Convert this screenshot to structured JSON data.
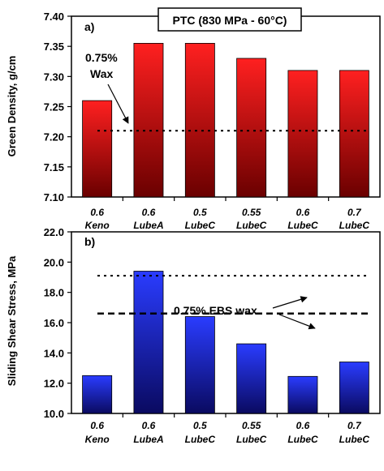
{
  "chart_data": [
    {
      "type": "bar",
      "panel_label": "a)",
      "title": "PTC (830 MPa - 60°C)",
      "ylabel": "Green Density, g/cm",
      "ylim": [
        7.1,
        7.4
      ],
      "yticks": [
        "7.10",
        "7.15",
        "7.20",
        "7.25",
        "7.30",
        "7.35",
        "7.40"
      ],
      "categories": [
        {
          "line1": "0.6",
          "line2": "Keno"
        },
        {
          "line1": "0.6",
          "line2": "LubeA"
        },
        {
          "line1": "0.5",
          "line2": "LubeC"
        },
        {
          "line1": "0.55",
          "line2": "LubeC"
        },
        {
          "line1": "0.6",
          "line2": "LubeC"
        },
        {
          "line1": "0.7",
          "line2": "LubeC"
        }
      ],
      "values": [
        7.26,
        7.355,
        7.355,
        7.33,
        7.31,
        7.31
      ],
      "bar_color_top": "#ff2020",
      "bar_color_bottom": "#6a0000",
      "reference_lines": [
        {
          "value": 7.21,
          "style": "dotted"
        }
      ],
      "annotation": {
        "line1": "0.75%",
        "line2": "Wax"
      },
      "grid": false
    },
    {
      "type": "bar",
      "panel_label": "b)",
      "ylabel": "Sliding Shear Stress, MPa",
      "ylim": [
        10.0,
        22.0
      ],
      "yticks": [
        "10.0",
        "12.0",
        "14.0",
        "16.0",
        "18.0",
        "20.0",
        "22.0"
      ],
      "categories": [
        {
          "line1": "0.6",
          "line2": "Keno"
        },
        {
          "line1": "0.6",
          "line2": "LubeA"
        },
        {
          "line1": "0.5",
          "line2": "LubeC"
        },
        {
          "line1": "0.55",
          "line2": "LubeC"
        },
        {
          "line1": "0.6",
          "line2": "LubeC"
        },
        {
          "line1": "0.7",
          "line2": "LubeC"
        }
      ],
      "values": [
        12.5,
        19.4,
        16.4,
        14.6,
        12.45,
        13.4
      ],
      "bar_color_top": "#2a3cff",
      "bar_color_bottom": "#0a0a60",
      "reference_lines": [
        {
          "value": 19.1,
          "style": "dotted"
        },
        {
          "value": 16.6,
          "style": "dashed"
        }
      ],
      "annotation": {
        "line1": "0.75% EBS wax"
      },
      "grid": false
    }
  ]
}
